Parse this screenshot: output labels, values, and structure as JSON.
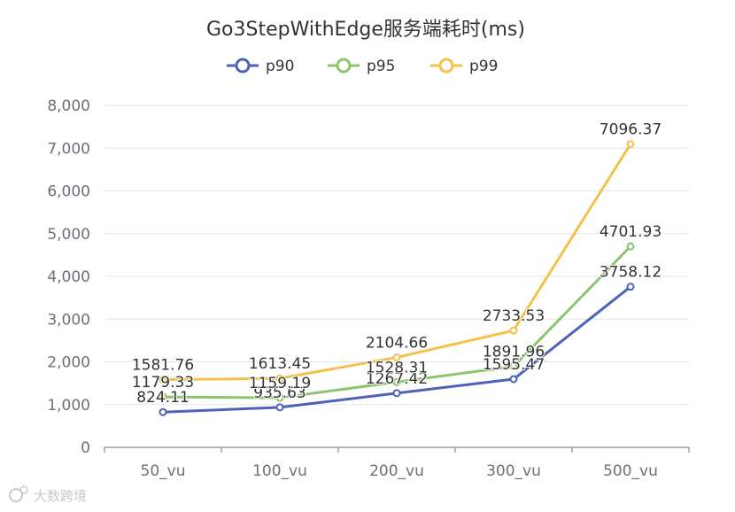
{
  "chart_data": {
    "type": "line",
    "title": "Go3StepWithEdge服务端耗时(ms)",
    "categories": [
      "50_vu",
      "100_vu",
      "200_vu",
      "300_vu",
      "500_vu"
    ],
    "series": [
      {
        "name": "p90",
        "color": "#4e62b8",
        "values": [
          824.11,
          935.63,
          1267.42,
          1595.47,
          3758.12
        ]
      },
      {
        "name": "p95",
        "color": "#8cc56c",
        "values": [
          1179.33,
          1159.19,
          1528.31,
          1891.96,
          4701.93
        ]
      },
      {
        "name": "p99",
        "color": "#f5c14d",
        "values": [
          1581.76,
          1613.45,
          2104.66,
          2733.53,
          7096.37
        ]
      }
    ],
    "ylim": [
      0,
      8000
    ],
    "yticks": [
      0,
      1000,
      2000,
      3000,
      4000,
      5000,
      6000,
      7000,
      8000
    ],
    "ytick_labels": [
      "0",
      "1,000",
      "2,000",
      "3,000",
      "4,000",
      "5,000",
      "6,000",
      "7,000",
      "8,000"
    ],
    "grid": true,
    "legend_position": "top-center"
  },
  "watermark": {
    "text": "大数跨境",
    "icon": "watermark-logo-icon"
  }
}
